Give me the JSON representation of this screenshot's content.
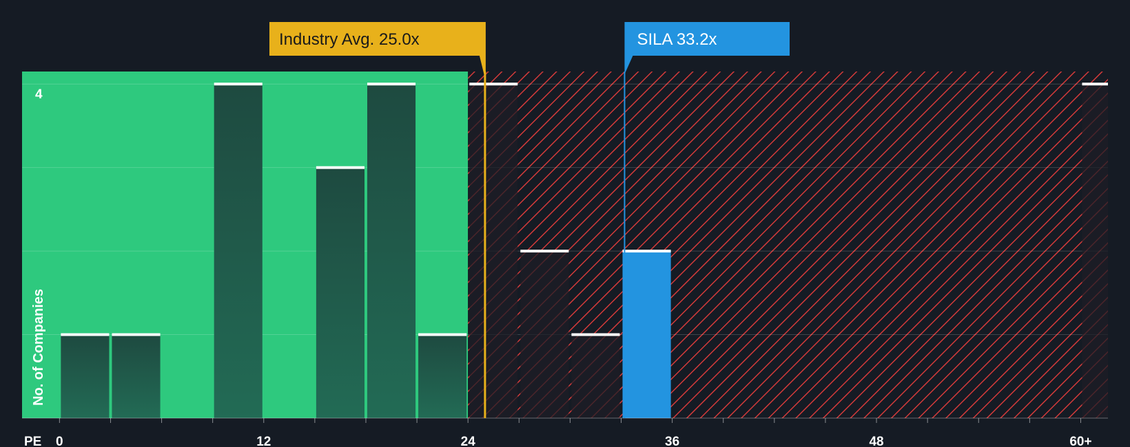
{
  "chart_data": {
    "type": "bar",
    "title": "",
    "xlabel": "PE",
    "ylabel": "No. of Companies",
    "x_ticks": [
      "0",
      "12",
      "24",
      "36",
      "48",
      "60+"
    ],
    "x_tick_values": [
      0,
      12,
      24,
      36,
      48,
      60
    ],
    "xlim": [
      -2.2,
      61.6
    ],
    "ylim": [
      0,
      4.15
    ],
    "y_tick_labels": [
      {
        "value": 4,
        "label": "4"
      }
    ],
    "bin_width": 3,
    "bars": [
      {
        "x": 0,
        "value": 1,
        "group": "below"
      },
      {
        "x": 3,
        "value": 1,
        "group": "below"
      },
      {
        "x": 9,
        "value": 4,
        "group": "below"
      },
      {
        "x": 15,
        "value": 3,
        "group": "below"
      },
      {
        "x": 18,
        "value": 4,
        "group": "below"
      },
      {
        "x": 21,
        "value": 1,
        "group": "below"
      },
      {
        "x": 24,
        "value": 4,
        "group": "above"
      },
      {
        "x": 27,
        "value": 2,
        "group": "above"
      },
      {
        "x": 30,
        "value": 1,
        "group": "above"
      },
      {
        "x": 33,
        "value": 2,
        "group": "subject"
      },
      {
        "x": 60,
        "value": 4,
        "group": "above"
      }
    ],
    "fair_region_end": 24,
    "industry_avg": {
      "label": "Industry Avg. 25.0x",
      "value": 25.0
    },
    "subject": {
      "label": "SILA 33.2x",
      "value": 33.2
    }
  },
  "colors": {
    "background": "#151b24",
    "green_region": "#2ec97e",
    "dark_bar": "#1f4e43",
    "red_hatch": "#d33a3a",
    "red_bar": "#1e1e26",
    "subject_blue": "#2394e0",
    "industry_gold": "#e8b11b"
  }
}
